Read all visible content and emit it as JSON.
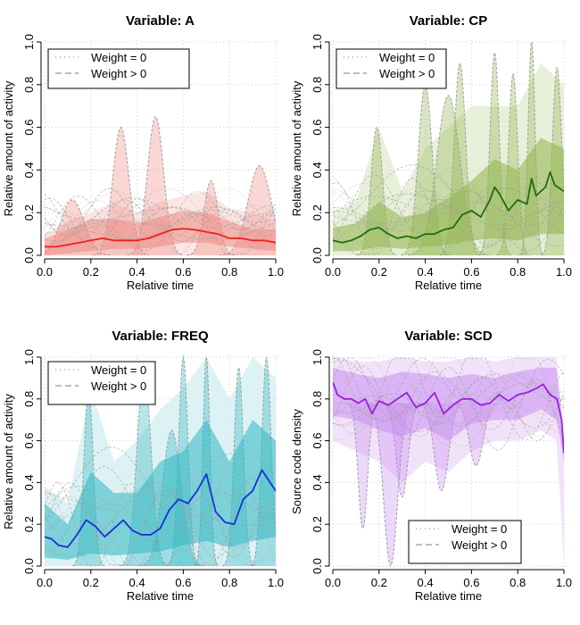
{
  "chart_data": [
    {
      "type": "line",
      "title": "Variable: A",
      "xlabel": "Relative time",
      "ylabel": "Relative amount of activity",
      "xlim": [
        0,
        1
      ],
      "ylim": [
        0,
        1
      ],
      "xticks": [
        "0.0",
        "0.2",
        "0.4",
        "0.6",
        "0.8",
        "1.0"
      ],
      "yticks": [
        "0.0",
        "0.2",
        "0.4",
        "0.6",
        "0.8",
        "1.0"
      ],
      "grid": true,
      "legend_position": "top-left",
      "legend": [
        {
          "label": "Weight = 0",
          "style": "dotted"
        },
        {
          "label": "Weight > 0",
          "style": "dashed"
        }
      ],
      "colors": {
        "mean": "#e8231c",
        "band": "#f08a84",
        "light": "#fbe3e1",
        "gray": "#9e9e9e"
      },
      "mean": {
        "x": [
          0.0,
          0.05,
          0.1,
          0.15,
          0.2,
          0.25,
          0.3,
          0.35,
          0.4,
          0.45,
          0.5,
          0.55,
          0.6,
          0.65,
          0.7,
          0.75,
          0.8,
          0.85,
          0.9,
          0.95,
          1.0
        ],
        "y": [
          0.04,
          0.04,
          0.05,
          0.06,
          0.07,
          0.08,
          0.07,
          0.07,
          0.07,
          0.08,
          0.1,
          0.12,
          0.125,
          0.12,
          0.11,
          0.1,
          0.08,
          0.08,
          0.07,
          0.07,
          0.06
        ]
      },
      "bands": [
        {
          "x": [
            0.0,
            0.1,
            0.2,
            0.3,
            0.4,
            0.5,
            0.6,
            0.7,
            0.8,
            0.9,
            1.0
          ],
          "low": [
            0.0,
            0.01,
            0.02,
            0.03,
            0.03,
            0.04,
            0.06,
            0.06,
            0.04,
            0.03,
            0.02
          ],
          "high": [
            0.08,
            0.12,
            0.17,
            0.17,
            0.15,
            0.18,
            0.21,
            0.2,
            0.16,
            0.12,
            0.12
          ]
        },
        {
          "x": [
            0.0,
            0.1,
            0.2,
            0.3,
            0.4,
            0.5,
            0.6,
            0.7,
            0.8,
            0.9,
            1.0
          ],
          "low": [
            0.0,
            0.0,
            0.0,
            0.0,
            0.0,
            0.0,
            0.0,
            0.0,
            0.0,
            0.0,
            0.0
          ],
          "high": [
            0.1,
            0.16,
            0.2,
            0.25,
            0.2,
            0.25,
            0.28,
            0.3,
            0.22,
            0.2,
            0.16
          ]
        }
      ],
      "peaks": [
        {
          "center": 0.33,
          "height": 0.6,
          "width": 0.035,
          "base": 0.0
        },
        {
          "center": 0.48,
          "height": 0.65,
          "width": 0.035,
          "base": 0.0
        },
        {
          "center": 0.93,
          "height": 0.42,
          "width": 0.05,
          "base": 0.0
        },
        {
          "center": 0.12,
          "height": 0.26,
          "width": 0.05,
          "base": 0.0
        },
        {
          "center": 0.72,
          "height": 0.35,
          "width": 0.03,
          "base": 0.0
        }
      ]
    },
    {
      "type": "line",
      "title": "Variable: CP",
      "xlabel": "Relative time",
      "ylabel": "Relative amount of activity",
      "xlim": [
        0,
        1
      ],
      "ylim": [
        0,
        1
      ],
      "xticks": [
        "0.0",
        "0.2",
        "0.4",
        "0.6",
        "0.8",
        "1.0"
      ],
      "yticks": [
        "0.0",
        "0.2",
        "0.4",
        "0.6",
        "0.8",
        "1.0"
      ],
      "grid": true,
      "legend_position": "top-left",
      "legend": [
        {
          "label": "Weight = 0",
          "style": "dotted"
        },
        {
          "label": "Weight > 0",
          "style": "dashed"
        }
      ],
      "colors": {
        "mean": "#1f6e0b",
        "band": "#8fb54a",
        "light": "#e6eed6",
        "gray": "#9e9e9e"
      },
      "mean": {
        "x": [
          0.0,
          0.04,
          0.08,
          0.12,
          0.16,
          0.2,
          0.24,
          0.28,
          0.32,
          0.36,
          0.4,
          0.44,
          0.48,
          0.52,
          0.56,
          0.6,
          0.64,
          0.68,
          0.7,
          0.72,
          0.76,
          0.8,
          0.84,
          0.86,
          0.88,
          0.92,
          0.94,
          0.96,
          1.0
        ],
        "y": [
          0.07,
          0.06,
          0.07,
          0.09,
          0.12,
          0.13,
          0.1,
          0.08,
          0.09,
          0.08,
          0.1,
          0.1,
          0.12,
          0.13,
          0.19,
          0.21,
          0.18,
          0.26,
          0.32,
          0.29,
          0.21,
          0.26,
          0.24,
          0.36,
          0.28,
          0.32,
          0.39,
          0.33,
          0.3
        ]
      },
      "bands": [
        {
          "x": [
            0.0,
            0.1,
            0.2,
            0.3,
            0.4,
            0.5,
            0.6,
            0.7,
            0.8,
            0.9,
            1.0
          ],
          "low": [
            0.02,
            0.02,
            0.04,
            0.03,
            0.04,
            0.05,
            0.07,
            0.08,
            0.07,
            0.1,
            0.1
          ],
          "high": [
            0.13,
            0.15,
            0.25,
            0.18,
            0.2,
            0.27,
            0.35,
            0.45,
            0.4,
            0.55,
            0.5
          ]
        },
        {
          "x": [
            0.0,
            0.1,
            0.2,
            0.3,
            0.4,
            0.5,
            0.6,
            0.7,
            0.8,
            0.9,
            1.0
          ],
          "low": [
            0.0,
            0.0,
            0.0,
            0.0,
            0.0,
            0.0,
            0.0,
            0.0,
            0.0,
            0.0,
            0.0
          ],
          "high": [
            0.2,
            0.25,
            0.6,
            0.3,
            0.5,
            0.6,
            0.7,
            0.7,
            0.7,
            0.9,
            0.8
          ]
        }
      ],
      "peaks": [
        {
          "center": 0.19,
          "height": 0.6,
          "width": 0.025,
          "base": 0.0
        },
        {
          "center": 0.4,
          "height": 0.8,
          "width": 0.03,
          "base": 0.0
        },
        {
          "center": 0.55,
          "height": 0.9,
          "width": 0.025,
          "base": 0.0
        },
        {
          "center": 0.7,
          "height": 0.95,
          "width": 0.02,
          "base": 0.0
        },
        {
          "center": 0.78,
          "height": 0.85,
          "width": 0.02,
          "base": 0.0
        },
        {
          "center": 0.86,
          "height": 1.0,
          "width": 0.015,
          "base": 0.0
        },
        {
          "center": 0.97,
          "height": 0.88,
          "width": 0.02,
          "base": 0.0
        },
        {
          "center": 0.5,
          "height": 0.75,
          "width": 0.05,
          "base": 0.0
        }
      ]
    },
    {
      "type": "line",
      "title": "Variable: FREQ",
      "xlabel": "Relative time",
      "ylabel": "Relative amount of activity",
      "xlim": [
        0,
        1
      ],
      "ylim": [
        0,
        1
      ],
      "xticks": [
        "0.0",
        "0.2",
        "0.4",
        "0.6",
        "0.8",
        "1.0"
      ],
      "yticks": [
        "0.0",
        "0.2",
        "0.4",
        "0.6",
        "0.8",
        "1.0"
      ],
      "grid": true,
      "legend_position": "top-left",
      "legend": [
        {
          "label": "Weight = 0",
          "style": "dotted"
        },
        {
          "label": "Weight > 0",
          "style": "dashed"
        }
      ],
      "colors": {
        "mean": "#1a2fd6",
        "band": "#2fb8c2",
        "light": "#d8f1f3",
        "gray": "#9e9e9e"
      },
      "mean": {
        "x": [
          0.0,
          0.03,
          0.06,
          0.1,
          0.14,
          0.18,
          0.22,
          0.26,
          0.3,
          0.34,
          0.38,
          0.42,
          0.46,
          0.5,
          0.54,
          0.58,
          0.62,
          0.66,
          0.7,
          0.74,
          0.78,
          0.82,
          0.86,
          0.9,
          0.94,
          0.97,
          1.0
        ],
        "y": [
          0.14,
          0.13,
          0.1,
          0.09,
          0.15,
          0.22,
          0.19,
          0.14,
          0.18,
          0.22,
          0.17,
          0.15,
          0.15,
          0.18,
          0.27,
          0.32,
          0.3,
          0.36,
          0.44,
          0.26,
          0.21,
          0.2,
          0.32,
          0.36,
          0.46,
          0.41,
          0.36
        ]
      },
      "bands": [
        {
          "x": [
            0.0,
            0.1,
            0.2,
            0.3,
            0.4,
            0.5,
            0.6,
            0.7,
            0.8,
            0.9,
            1.0
          ],
          "low": [
            0.04,
            0.03,
            0.06,
            0.05,
            0.06,
            0.07,
            0.1,
            0.12,
            0.09,
            0.12,
            0.14
          ],
          "high": [
            0.3,
            0.2,
            0.45,
            0.35,
            0.35,
            0.5,
            0.55,
            0.7,
            0.5,
            0.7,
            0.6
          ]
        },
        {
          "x": [
            0.0,
            0.1,
            0.2,
            0.3,
            0.4,
            0.5,
            0.6,
            0.7,
            0.8,
            0.9,
            1.0
          ],
          "low": [
            0.0,
            0.0,
            0.0,
            0.0,
            0.0,
            0.0,
            0.0,
            0.0,
            0.0,
            0.0,
            0.0
          ],
          "high": [
            0.38,
            0.3,
            0.85,
            0.5,
            0.6,
            0.75,
            0.85,
            1.0,
            0.8,
            1.0,
            0.9
          ]
        }
      ],
      "peaks": [
        {
          "center": 0.19,
          "height": 0.85,
          "width": 0.02,
          "base": 0.0
        },
        {
          "center": 0.43,
          "height": 0.95,
          "width": 0.03,
          "base": 0.0
        },
        {
          "center": 0.6,
          "height": 1.0,
          "width": 0.02,
          "base": 0.0
        },
        {
          "center": 0.7,
          "height": 1.0,
          "width": 0.015,
          "base": 0.0
        },
        {
          "center": 0.84,
          "height": 0.95,
          "width": 0.02,
          "base": 0.0
        },
        {
          "center": 0.96,
          "height": 1.0,
          "width": 0.02,
          "base": 0.0
        },
        {
          "center": 0.55,
          "height": 0.65,
          "width": 0.04,
          "base": 0.0
        }
      ]
    },
    {
      "type": "line",
      "title": "Variable: SCD",
      "xlabel": "Relative time",
      "ylabel": "Source code density",
      "xlim": [
        0,
        1
      ],
      "ylim": [
        0,
        1
      ],
      "xticks": [
        "0.0",
        "0.2",
        "0.4",
        "0.6",
        "0.8",
        "1.0"
      ],
      "yticks": [
        "0.0",
        "0.2",
        "0.4",
        "0.6",
        "0.8",
        "1.0"
      ],
      "grid": true,
      "legend_position": "bottom-right",
      "legend": [
        {
          "label": "Weight = 0",
          "style": "dotted"
        },
        {
          "label": "Weight > 0",
          "style": "dashed"
        }
      ],
      "colors": {
        "mean": "#9b1ee0",
        "band": "#c98ff0",
        "light": "#efdffa",
        "gray": "#9e9e9e"
      },
      "mean": {
        "x": [
          0.0,
          0.02,
          0.05,
          0.08,
          0.11,
          0.14,
          0.17,
          0.2,
          0.24,
          0.28,
          0.32,
          0.36,
          0.4,
          0.44,
          0.48,
          0.52,
          0.56,
          0.6,
          0.64,
          0.68,
          0.72,
          0.76,
          0.8,
          0.84,
          0.88,
          0.91,
          0.94,
          0.97,
          0.99,
          1.0
        ],
        "y": [
          0.88,
          0.82,
          0.8,
          0.8,
          0.78,
          0.8,
          0.73,
          0.79,
          0.77,
          0.8,
          0.83,
          0.76,
          0.78,
          0.83,
          0.73,
          0.77,
          0.8,
          0.8,
          0.77,
          0.78,
          0.82,
          0.79,
          0.82,
          0.83,
          0.85,
          0.87,
          0.82,
          0.8,
          0.7,
          0.54
        ]
      },
      "bands": [
        {
          "x": [
            0.0,
            0.1,
            0.2,
            0.3,
            0.4,
            0.5,
            0.6,
            0.7,
            0.8,
            0.9,
            0.97,
            1.0
          ],
          "low": [
            0.72,
            0.7,
            0.65,
            0.62,
            0.66,
            0.6,
            0.68,
            0.7,
            0.7,
            0.75,
            0.7,
            0.5
          ],
          "high": [
            0.95,
            0.92,
            0.9,
            0.93,
            0.92,
            0.9,
            0.92,
            0.9,
            0.93,
            0.95,
            0.95,
            0.6
          ]
        },
        {
          "x": [
            0.0,
            0.1,
            0.2,
            0.3,
            0.4,
            0.5,
            0.6,
            0.7,
            0.8,
            0.9,
            0.97,
            1.0
          ],
          "low": [
            0.6,
            0.55,
            0.5,
            0.4,
            0.5,
            0.45,
            0.55,
            0.6,
            0.6,
            0.65,
            0.6,
            0.0
          ],
          "high": [
            1.0,
            0.98,
            0.98,
            1.0,
            0.98,
            0.98,
            1.0,
            0.98,
            1.0,
            1.0,
            1.0,
            0.6
          ]
        }
      ],
      "peaks": [
        {
          "center": 0.3,
          "height": -0.45,
          "width": 0.025,
          "base": 0.78
        },
        {
          "center": 0.47,
          "height": -0.42,
          "width": 0.03,
          "base": 0.78
        },
        {
          "center": 0.62,
          "height": -0.3,
          "width": 0.03,
          "base": 0.78
        },
        {
          "center": 0.13,
          "height": -0.6,
          "width": 0.02,
          "base": 0.78
        },
        {
          "center": 0.25,
          "height": -0.78,
          "width": 0.03,
          "base": 0.78
        }
      ]
    }
  ]
}
